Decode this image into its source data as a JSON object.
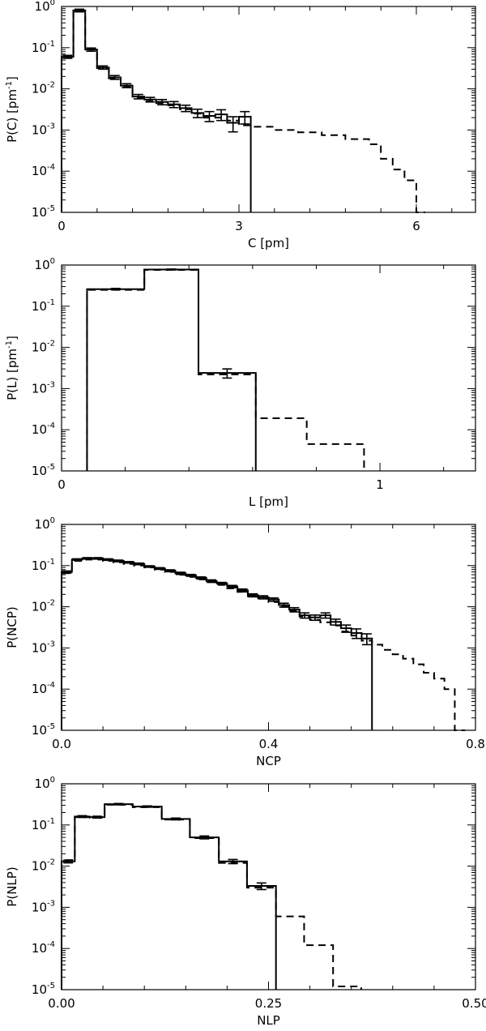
{
  "chart_data": [
    {
      "type": "histogram",
      "xlabel": "C [pm]",
      "ylabel_base": "P(C) [pm",
      "ylabel_sup": "-1",
      "ylabel_end": "]",
      "yscale": "log",
      "xlim": [
        0,
        7
      ],
      "ylim": [
        1e-05,
        1
      ],
      "xticks": [
        {
          "v": 0,
          "label": "0"
        },
        {
          "v": 3,
          "label": "3"
        },
        {
          "v": 6,
          "label": "6"
        }
      ],
      "solid": {
        "edges": [
          0,
          0.2,
          0.4,
          0.6,
          0.8,
          1.0,
          1.2,
          1.4,
          1.6,
          1.8,
          2.0,
          2.2,
          2.4,
          2.6,
          2.8,
          3.0,
          3.2
        ],
        "values": [
          0.06,
          0.8,
          0.09,
          0.033,
          0.019,
          0.012,
          0.0065,
          0.0055,
          0.0048,
          0.0042,
          0.0034,
          0.0026,
          0.0022,
          0.0024,
          0.0015,
          0.0021
        ],
        "errors": [
          0.005,
          0.06,
          0.008,
          0.003,
          0.002,
          0.0013,
          0.0008,
          0.0007,
          0.0007,
          0.0007,
          0.0006,
          0.0006,
          0.0006,
          0.0007,
          0.0006,
          0.0007
        ]
      },
      "dashed": {
        "edges": [
          0,
          0.2,
          0.4,
          0.6,
          0.8,
          1.0,
          1.2,
          1.4,
          1.6,
          1.8,
          2.0,
          2.2,
          2.4,
          2.6,
          2.8,
          3.0,
          3.2,
          3.6,
          4.0,
          4.4,
          4.8,
          5.2,
          5.4,
          5.6,
          5.8,
          6.0,
          6.15
        ],
        "values": [
          0.06,
          0.8,
          0.09,
          0.032,
          0.018,
          0.011,
          0.006,
          0.005,
          0.0045,
          0.004,
          0.0032,
          0.0025,
          0.002,
          0.002,
          0.0017,
          0.0013,
          0.0012,
          0.001,
          0.00088,
          0.00075,
          0.0006,
          0.00045,
          0.0002,
          0.00011,
          6e-05,
          1e-05
        ]
      }
    },
    {
      "type": "histogram",
      "xlabel": "L [pm]",
      "ylabel_base": "P(L) [pm",
      "ylabel_sup": "-1",
      "ylabel_end": "]",
      "yscale": "log",
      "xlim": [
        0,
        1.3
      ],
      "ylim": [
        1e-05,
        1
      ],
      "xticks": [
        {
          "v": 0,
          "label": "0"
        },
        {
          "v": 1,
          "label": "1"
        }
      ],
      "solid": {
        "edges": [
          0.08,
          0.26,
          0.43,
          0.61
        ],
        "values": [
          0.26,
          0.78,
          0.0024
        ],
        "errors": [
          0.01,
          0.02,
          0.0006
        ]
      },
      "dashed": {
        "edges": [
          0.08,
          0.26,
          0.43,
          0.61,
          0.77,
          0.95
        ],
        "values": [
          0.25,
          0.76,
          0.0022,
          0.00019,
          4.5e-05
        ]
      }
    },
    {
      "type": "histogram",
      "xlabel": "NCP",
      "ylabel_base": "P(NCP)",
      "ylabel_sup": "",
      "ylabel_end": "",
      "yscale": "log",
      "xlim": [
        0,
        0.8
      ],
      "ylim": [
        1e-05,
        1
      ],
      "xticks": [
        {
          "v": 0,
          "label": "0.0"
        },
        {
          "v": 0.4,
          "label": "0.4"
        },
        {
          "v": 0.8,
          "label": "0.8"
        }
      ],
      "solid": {
        "edges": [
          0,
          0.02,
          0.04,
          0.06,
          0.08,
          0.1,
          0.12,
          0.14,
          0.16,
          0.18,
          0.2,
          0.22,
          0.24,
          0.26,
          0.28,
          0.3,
          0.32,
          0.34,
          0.36,
          0.38,
          0.4,
          0.42,
          0.44,
          0.46,
          0.48,
          0.5,
          0.52,
          0.54,
          0.56,
          0.58,
          0.6
        ],
        "values": [
          0.07,
          0.14,
          0.15,
          0.15,
          0.14,
          0.13,
          0.12,
          0.11,
          0.095,
          0.085,
          0.075,
          0.065,
          0.058,
          0.05,
          0.042,
          0.037,
          0.031,
          0.025,
          0.019,
          0.017,
          0.015,
          0.011,
          0.0085,
          0.0062,
          0.0055,
          0.0062,
          0.0043,
          0.003,
          0.0023,
          0.0017
        ],
        "errors": [
          0.004,
          0.006,
          0.006,
          0.006,
          0.006,
          0.006,
          0.005,
          0.005,
          0.004,
          0.004,
          0.004,
          0.004,
          0.003,
          0.003,
          0.003,
          0.002,
          0.002,
          0.002,
          0.0016,
          0.0015,
          0.0014,
          0.0012,
          0.001,
          0.0009,
          0.0008,
          0.0009,
          0.0007,
          0.0006,
          0.0006,
          0.0005
        ]
      },
      "dashed": {
        "edges": [
          0,
          0.02,
          0.04,
          0.06,
          0.08,
          0.1,
          0.12,
          0.14,
          0.16,
          0.18,
          0.2,
          0.22,
          0.24,
          0.26,
          0.28,
          0.3,
          0.32,
          0.34,
          0.36,
          0.38,
          0.4,
          0.42,
          0.44,
          0.46,
          0.48,
          0.5,
          0.52,
          0.54,
          0.56,
          0.58,
          0.6,
          0.62,
          0.64,
          0.66,
          0.68,
          0.7,
          0.72,
          0.74,
          0.76,
          0.78
        ],
        "values": [
          0.065,
          0.13,
          0.14,
          0.14,
          0.13,
          0.12,
          0.11,
          0.1,
          0.09,
          0.08,
          0.07,
          0.06,
          0.053,
          0.046,
          0.04,
          0.034,
          0.028,
          0.023,
          0.018,
          0.016,
          0.013,
          0.01,
          0.008,
          0.0058,
          0.0048,
          0.0042,
          0.0035,
          0.0025,
          0.002,
          0.0015,
          0.0012,
          0.0009,
          0.0007,
          0.00055,
          0.0004,
          0.00025,
          0.00018,
          0.0001,
          1e-05
        ]
      }
    },
    {
      "type": "histogram",
      "xlabel": "NLP",
      "ylabel_base": "P(NLP)",
      "ylabel_sup": "",
      "ylabel_end": "",
      "yscale": "log",
      "xlim": [
        0,
        0.5
      ],
      "ylim": [
        1e-05,
        1
      ],
      "xticks": [
        {
          "v": 0,
          "label": "0.00"
        },
        {
          "v": 0.25,
          "label": "0.25"
        },
        {
          "v": 0.5,
          "label": "0.50"
        }
      ],
      "solid": {
        "edges": [
          0,
          0.016,
          0.034,
          0.052,
          0.086,
          0.121,
          0.155,
          0.19,
          0.224,
          0.259
        ],
        "values": [
          0.013,
          0.16,
          0.155,
          0.32,
          0.28,
          0.14,
          0.05,
          0.013,
          0.0033
        ],
        "errors": [
          0.001,
          0.008,
          0.008,
          0.012,
          0.01,
          0.007,
          0.004,
          0.0015,
          0.0006
        ]
      },
      "dashed": {
        "edges": [
          0,
          0.016,
          0.034,
          0.052,
          0.086,
          0.121,
          0.155,
          0.19,
          0.224,
          0.259,
          0.293,
          0.328,
          0.362
        ],
        "values": [
          0.014,
          0.155,
          0.15,
          0.31,
          0.27,
          0.135,
          0.048,
          0.012,
          0.003,
          0.0006,
          0.00012,
          1.2e-05
        ]
      }
    }
  ]
}
